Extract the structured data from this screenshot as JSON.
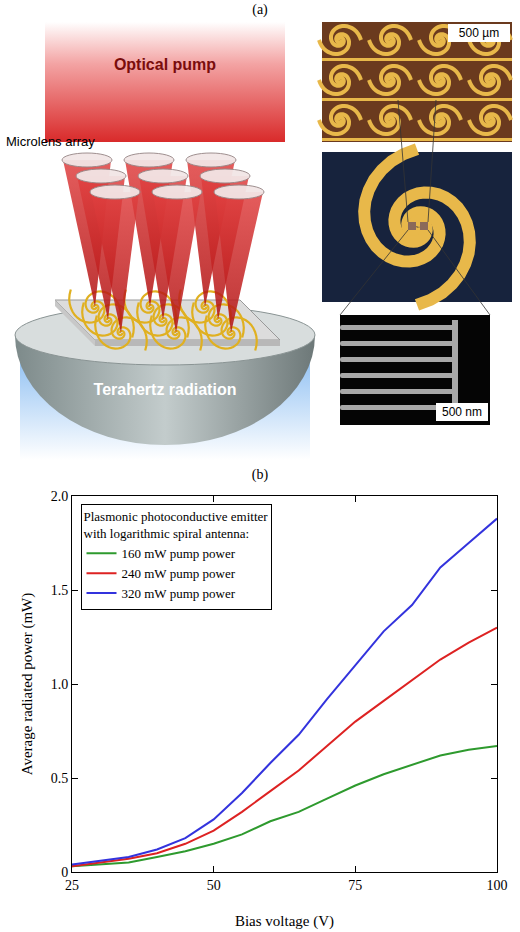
{
  "figure_a": {
    "label": "(a)",
    "optical_pump": "Optical pump",
    "microlens_array": "Microlens array",
    "terahertz_radiation": "Terahertz radiation",
    "scale_top": "500 µm",
    "scale_bottom": "500 nm"
  },
  "chart_data": {
    "type": "line",
    "title": "(b)",
    "x_label": "Bias voltage (V)",
    "y_label": "Average radiated power (mW)",
    "legend_title": [
      "Plasmonic photoconductive emitter",
      "with logarithmic spiral antenna:"
    ],
    "x": [
      25,
      30,
      35,
      40,
      45,
      50,
      55,
      60,
      65,
      70,
      75,
      80,
      85,
      90,
      95,
      100
    ],
    "series": [
      {
        "name": "160 mW pump power",
        "color": "#2e9a2e",
        "values": [
          0.03,
          0.04,
          0.05,
          0.08,
          0.11,
          0.15,
          0.2,
          0.27,
          0.32,
          0.39,
          0.46,
          0.52,
          0.57,
          0.62,
          0.65,
          0.67
        ]
      },
      {
        "name": "240 mW pump power",
        "color": "#dd2222",
        "values": [
          0.03,
          0.05,
          0.07,
          0.1,
          0.15,
          0.22,
          0.32,
          0.43,
          0.54,
          0.67,
          0.8,
          0.91,
          1.02,
          1.13,
          1.22,
          1.3
        ]
      },
      {
        "name": "320 mW pump power",
        "color": "#3333dd",
        "values": [
          0.04,
          0.06,
          0.08,
          0.12,
          0.18,
          0.28,
          0.42,
          0.58,
          0.73,
          0.92,
          1.1,
          1.28,
          1.42,
          1.62,
          1.75,
          1.88
        ]
      }
    ],
    "xlim": [
      25,
      100
    ],
    "xticks": [
      25,
      50,
      75,
      100
    ],
    "ylim": [
      0,
      2.0
    ],
    "yticks": [
      0,
      0.5,
      {
        "value": 1.0,
        "label": "1.0"
      },
      1.5,
      {
        "value": 2.0,
        "label": "2.0"
      }
    ],
    "grid": false,
    "legend": "upper left"
  }
}
